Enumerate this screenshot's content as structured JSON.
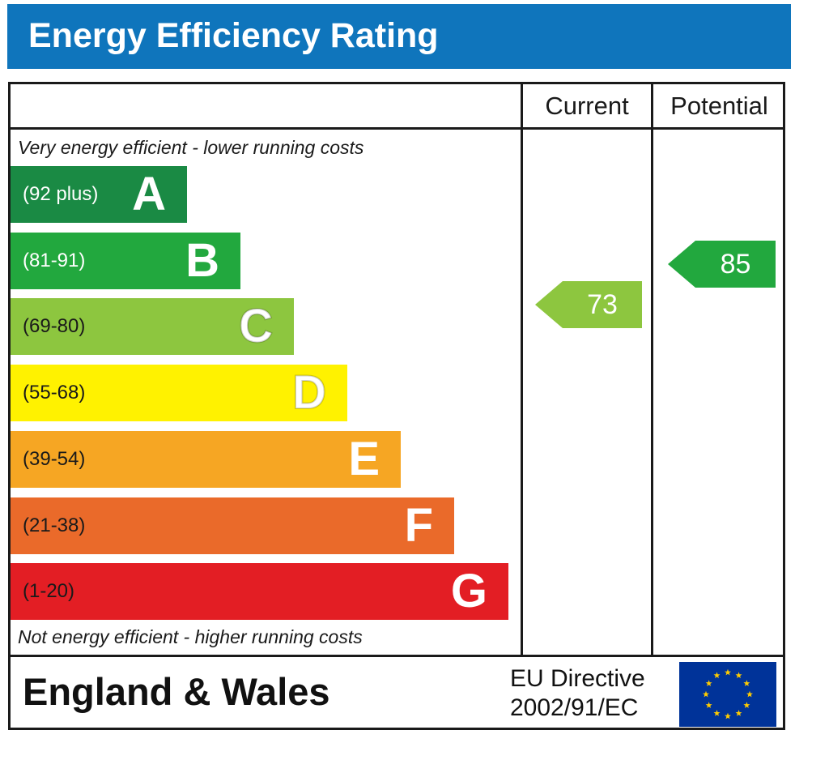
{
  "header": {
    "title": "Energy Efficiency Rating"
  },
  "columns": {
    "current": "Current",
    "potential": "Potential"
  },
  "notes": {
    "top": "Very energy efficient - lower running costs",
    "bottom": "Not energy efficient - higher running costs"
  },
  "chart_data": {
    "type": "bar",
    "title": "Energy Efficiency Rating",
    "bands": [
      {
        "letter": "A",
        "range": "(92 plus)",
        "color": "#1a8a44"
      },
      {
        "letter": "B",
        "range": "(81-91)",
        "color": "#22a83e"
      },
      {
        "letter": "C",
        "range": "(69-80)",
        "color": "#8dc63f"
      },
      {
        "letter": "D",
        "range": "(55-68)",
        "color": "#fff200"
      },
      {
        "letter": "E",
        "range": "(39-54)",
        "color": "#f6a623"
      },
      {
        "letter": "F",
        "range": "(21-38)",
        "color": "#ea6a2a"
      },
      {
        "letter": "G",
        "range": "(1-20)",
        "color": "#e31e24"
      }
    ],
    "current": {
      "value": "73",
      "band": "C",
      "color": "#8dc63f"
    },
    "potential": {
      "value": "85",
      "band": "B",
      "color": "#22a83e"
    }
  },
  "footer": {
    "region": "England & Wales",
    "directive_line1": "EU Directive",
    "directive_line2": "2002/91/EC"
  },
  "icons": {
    "flag": "eu-flag-icon"
  },
  "colors": {
    "title_bar": "#0f75bc",
    "eu_blue": "#003399",
    "eu_star": "#ffcc00"
  }
}
